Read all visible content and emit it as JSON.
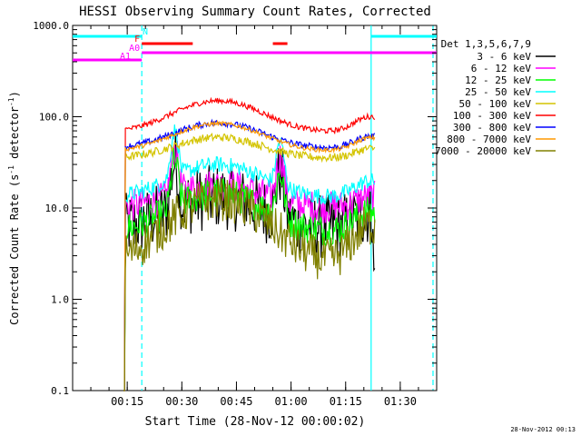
{
  "chart_data": {
    "type": "line",
    "title": "HESSI Observing Summary Count Rates, Corrected",
    "xlabel": "Start Time (28-Nov-12 00:00:02)",
    "ylabel_main": "Corrected Count Rate (s",
    "ylabel_sup1": "-1",
    "ylabel_mid": " detector",
    "ylabel_sup2": "-1",
    "ylabel_end": ")",
    "yscale": "log",
    "ylim": [
      0.1,
      1000
    ],
    "xlim_min": [
      0,
      100
    ],
    "y_ticks": [
      {
        "value": 0.1,
        "label": "0.1"
      },
      {
        "value": 1,
        "label": "1.0"
      },
      {
        "value": 10,
        "label": "10.0"
      },
      {
        "value": 100,
        "label": "100.0"
      },
      {
        "value": 1000,
        "label": "1000.0"
      }
    ],
    "x_ticks": [
      {
        "value": 15,
        "label": "00:15"
      },
      {
        "value": 30,
        "label": "00:30"
      },
      {
        "value": 45,
        "label": "00:45"
      },
      {
        "value": 60,
        "label": "01:00"
      },
      {
        "value": 75,
        "label": "01:15"
      },
      {
        "value": 90,
        "label": "01:30"
      }
    ],
    "legend": {
      "title": "Det 1,3,5,6,7,9",
      "placement": "right"
    },
    "series": [
      {
        "name": "3 - 6 keV",
        "color": "#000000",
        "base": 6,
        "peak": 2.2,
        "noise": 0.12
      },
      {
        "name": "6 - 12 keV",
        "color": "#ff00ff",
        "base": 10,
        "peak": 1.8,
        "noise": 0.06
      },
      {
        "name": "12 - 25 keV",
        "color": "#00ff00",
        "base": 5.5,
        "peak": 2.6,
        "noise": 0.06
      },
      {
        "name": "25 - 50 keV",
        "color": "#00ffff",
        "base": 13,
        "peak": 2.3,
        "noise": 0.03
      },
      {
        "name": "50 - 100 keV",
        "color": "#d4c400",
        "base": 35,
        "peak": 1.7,
        "noise": 0.015
      },
      {
        "name": "100 - 300 keV",
        "color": "#ff0000",
        "base": 68,
        "peak": 2.2,
        "noise": 0.01
      },
      {
        "name": "300 - 800 keV",
        "color": "#0000ff",
        "base": 45,
        "peak": 1.9,
        "noise": 0.012
      },
      {
        "name": "800 - 7000 keV",
        "color": "#ff9900",
        "base": 42,
        "peak": 2.0,
        "noise": 0.008
      },
      {
        "name": "7000 - 20000 keV",
        "color": "#808000",
        "base": 2.5,
        "peak": 5.0,
        "noise": 0.08
      }
    ],
    "flags": [
      {
        "label": "N",
        "color": "#00ffff",
        "segments": [
          [
            0,
            19
          ],
          [
            82,
            100
          ]
        ]
      },
      {
        "label": "F",
        "color": "#ff0000",
        "segments": [
          [
            19,
            33
          ],
          [
            55,
            59
          ]
        ]
      },
      {
        "label": "A0",
        "color": "#ff00ff",
        "segments": [
          [
            19,
            100
          ]
        ]
      },
      {
        "label": "A1",
        "color": "#ff00ff",
        "segments": [
          [
            0,
            19
          ]
        ]
      }
    ],
    "verticals": [
      {
        "value": 19,
        "style": "dashed",
        "color": "#00ffff"
      },
      {
        "value": 82,
        "style": "solid",
        "color": "#00ffff"
      },
      {
        "value": 99,
        "style": "dashed",
        "color": "#00ffff"
      }
    ]
  },
  "footer": "28-Nov-2012 00:13"
}
